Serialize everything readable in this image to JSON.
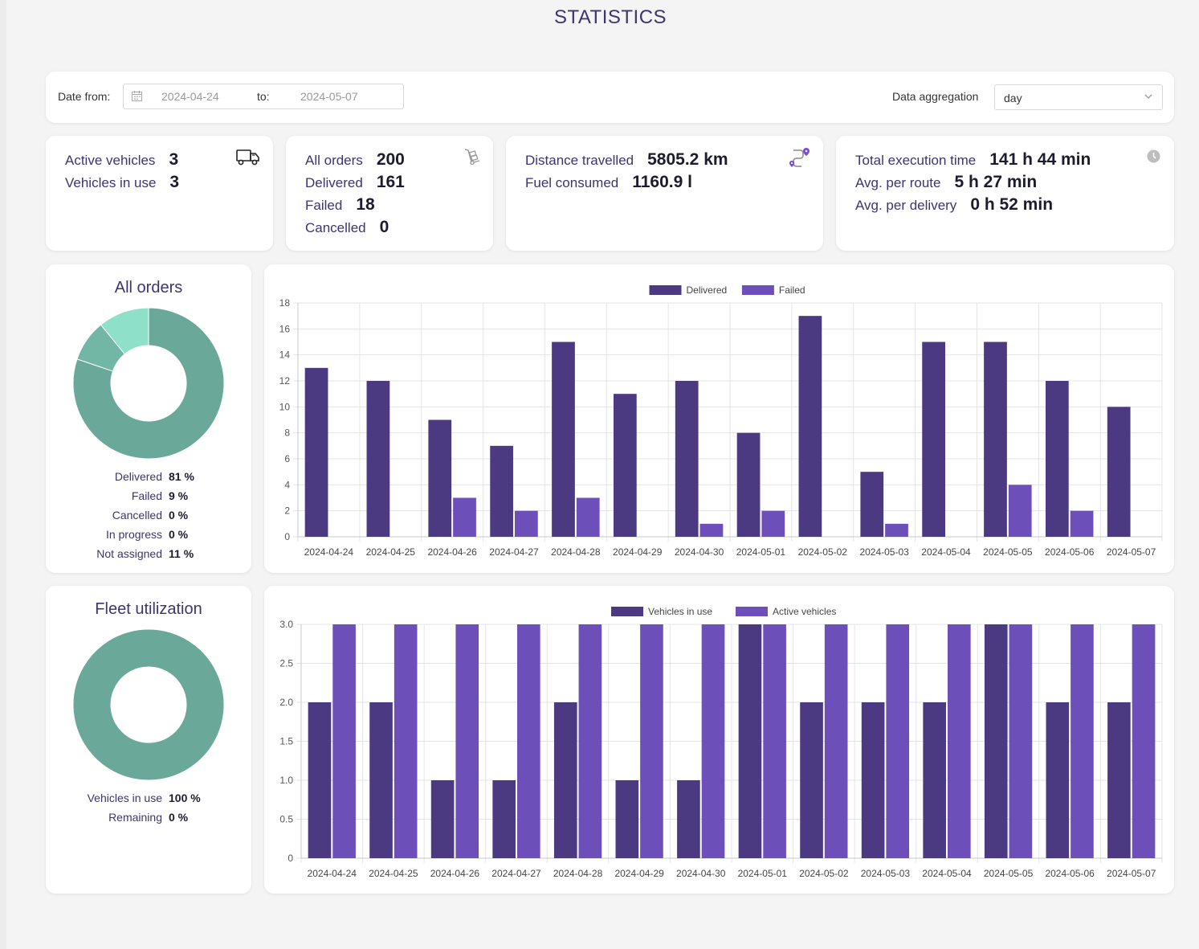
{
  "page_title": "STATISTICS",
  "filter": {
    "date_from_label": "Date from:",
    "date_from": "2024-04-24",
    "to_label": "to:",
    "date_to": "2024-05-07",
    "aggregation_label": "Data aggregation",
    "aggregation_value": "day"
  },
  "vehicles_card": {
    "active_label": "Active vehicles",
    "active_value": "3",
    "in_use_label": "Vehicles in use",
    "in_use_value": "3",
    "icon": "truck-icon"
  },
  "orders_card": {
    "all_label": "All orders",
    "all_value": "200",
    "delivered_label": "Delivered",
    "delivered_value": "161",
    "failed_label": "Failed",
    "failed_value": "18",
    "cancelled_label": "Cancelled",
    "cancelled_value": "0",
    "icon": "hand-truck-icon"
  },
  "distance_card": {
    "distance_label": "Distance travelled",
    "distance_value": "5805.2 km",
    "fuel_label": "Fuel consumed",
    "fuel_value": "1160.9 l",
    "icon": "route-icon"
  },
  "time_card": {
    "total_label": "Total execution time",
    "total_value": "141 h 44 min",
    "route_label": "Avg. per route",
    "route_value": "5 h 27 min",
    "delivery_label": "Avg. per delivery",
    "delivery_value": "0 h 52 min",
    "icon": "clock-icon"
  },
  "orders_donut": {
    "title": "All orders",
    "legend": [
      {
        "name": "Delivered",
        "value": "81 %"
      },
      {
        "name": "Failed",
        "value": "9 %"
      },
      {
        "name": "Cancelled",
        "value": "0 %"
      },
      {
        "name": "In progress",
        "value": "0 %"
      },
      {
        "name": "Not assigned",
        "value": "11 %"
      }
    ],
    "colors": [
      "#6aa99a",
      "#72b7a5",
      "#7fcfb9",
      "#84d9c2",
      "#8ee0c9"
    ]
  },
  "fleet_donut": {
    "title": "Fleet utilization",
    "legend": [
      {
        "name": "Vehicles in use",
        "value": "100 %"
      },
      {
        "name": "Remaining",
        "value": "0 %"
      }
    ],
    "colors": [
      "#6aa99a",
      "#8ee0c9"
    ]
  },
  "chart_data": [
    {
      "type": "pie",
      "title": "All orders",
      "categories": [
        "Delivered",
        "Failed",
        "Cancelled",
        "In progress",
        "Not assigned"
      ],
      "values": [
        81,
        9,
        0,
        0,
        11
      ]
    },
    {
      "type": "bar",
      "title": "",
      "categories": [
        "2024-04-24",
        "2024-04-25",
        "2024-04-26",
        "2024-04-27",
        "2024-04-28",
        "2024-04-29",
        "2024-04-30",
        "2024-05-01",
        "2024-05-02",
        "2024-05-03",
        "2024-05-04",
        "2024-05-05",
        "2024-05-06",
        "2024-05-07"
      ],
      "series": [
        {
          "name": "Delivered",
          "color": "#4b3a82",
          "values": [
            13,
            12,
            9,
            7,
            15,
            11,
            12,
            8,
            17,
            5,
            15,
            15,
            12,
            10
          ]
        },
        {
          "name": "Failed",
          "color": "#6c4fb8",
          "values": [
            0,
            0,
            3,
            2,
            3,
            0,
            1,
            2,
            0,
            1,
            0,
            4,
            2,
            0
          ]
        }
      ],
      "ylim": [
        0,
        18
      ],
      "yticks": [
        "0",
        "2",
        "4",
        "6",
        "8",
        "10",
        "12",
        "14",
        "16",
        "18"
      ],
      "ytick_values": [
        0,
        2,
        4,
        6,
        8,
        10,
        12,
        14,
        16,
        18
      ],
      "legend": "top"
    },
    {
      "type": "pie",
      "title": "Fleet utilization",
      "categories": [
        "Vehicles in use",
        "Remaining"
      ],
      "values": [
        100,
        0
      ]
    },
    {
      "type": "bar",
      "title": "",
      "categories": [
        "2024-04-24",
        "2024-04-25",
        "2024-04-26",
        "2024-04-27",
        "2024-04-28",
        "2024-04-29",
        "2024-04-30",
        "2024-05-01",
        "2024-05-02",
        "2024-05-03",
        "2024-05-04",
        "2024-05-05",
        "2024-05-06",
        "2024-05-07"
      ],
      "series": [
        {
          "name": "Vehicles in use",
          "color": "#4b3a82",
          "values": [
            2,
            2,
            1,
            1,
            2,
            1,
            1,
            3,
            2,
            2,
            2,
            3,
            2,
            2
          ]
        },
        {
          "name": "Active vehicles",
          "color": "#6c4fb8",
          "values": [
            3,
            3,
            3,
            3,
            3,
            3,
            3,
            3,
            3,
            3,
            3,
            3,
            3,
            3
          ]
        }
      ],
      "ylim": [
        0,
        3
      ],
      "yticks": [
        "0",
        "0.5",
        "1.0",
        "1.5",
        "2.0",
        "2.5",
        "3.0"
      ],
      "ytick_values": [
        0,
        0.5,
        1,
        1.5,
        2,
        2.5,
        3
      ],
      "legend": "top"
    }
  ]
}
